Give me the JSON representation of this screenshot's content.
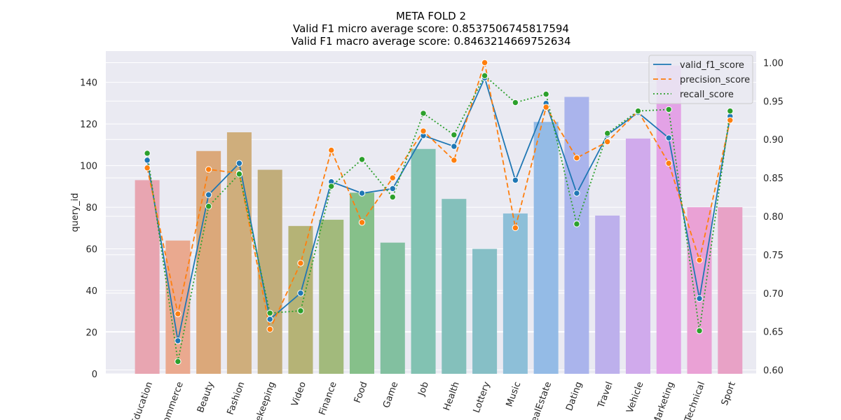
{
  "chart_data": {
    "type": "bar",
    "title_lines": [
      "META FOLD 2",
      "Valid F1 micro average score: 0.8537506745817594",
      "Valid F1 macro average score: 0.8463214669752634"
    ],
    "ylabel": "query_id",
    "ylim": [
      0,
      155
    ],
    "y2lim": [
      0.595,
      1.015
    ],
    "yticks": [
      0,
      20,
      40,
      60,
      80,
      100,
      120,
      140
    ],
    "y2ticks": [
      0.6,
      0.65,
      0.7,
      0.75,
      0.8,
      0.85,
      0.9,
      0.95,
      1.0
    ],
    "grid": true,
    "legend_position": "top-right",
    "categories": [
      "Education",
      "Ecommerce",
      "Beauty",
      "Fashion",
      "Housekeeping",
      "Video",
      "Finance",
      "Food",
      "Game",
      "Job",
      "Health",
      "Lottery",
      "Music",
      "RealEstate",
      "Dating",
      "Travel",
      "Vehicle",
      "Marketing",
      "Technical",
      "Sport"
    ],
    "category_labels": [
      "Education",
      "ommerce",
      "Beauty",
      "Fashion",
      "ekeeping",
      "Video",
      "Finance",
      "Food",
      "Game",
      "Job",
      "Health",
      "Lottery",
      "Music",
      "ealEstate",
      "Dating",
      "Travel",
      "Vehicle",
      "Marketing",
      "Technical",
      "Sport"
    ],
    "bar_values": [
      93,
      64,
      107,
      116,
      98,
      71,
      74,
      87,
      63,
      108,
      84,
      60,
      77,
      121,
      133,
      76,
      113,
      148,
      80,
      80
    ],
    "bar_colors": [
      "#e8a5b1",
      "#eaa98f",
      "#dba87a",
      "#cfae7c",
      "#c1ad7a",
      "#b5b376",
      "#a2ba7c",
      "#86c08a",
      "#82c0a0",
      "#82c2b2",
      "#84c0bb",
      "#86bfc6",
      "#8dbfd8",
      "#94bbe6",
      "#aab4ec",
      "#bdb0ec",
      "#d0aaec",
      "#e3a2e6",
      "#eaa1d5",
      "#e8a2c6"
    ],
    "series": [
      {
        "name": "valid_f1_score",
        "color": "#1f77b4",
        "dash": "solid",
        "values": [
          0.873,
          0.638,
          0.828,
          0.869,
          0.666,
          0.7,
          0.845,
          0.83,
          0.836,
          0.905,
          0.891,
          0.98,
          0.847,
          0.947,
          0.83,
          0.906,
          0.935,
          0.902,
          0.693,
          0.93
        ]
      },
      {
        "name": "precision_score",
        "color": "#ff7f0e",
        "dash": "dashed",
        "values": [
          0.863,
          0.673,
          0.861,
          0.856,
          0.653,
          0.739,
          0.886,
          0.792,
          0.85,
          0.911,
          0.873,
          1.0,
          0.785,
          0.942,
          0.876,
          0.897,
          0.937,
          0.869,
          0.743,
          0.925
        ]
      },
      {
        "name": "recall_score",
        "color": "#2ca02c",
        "dash": "dotted",
        "values": [
          0.882,
          0.611,
          0.813,
          0.855,
          0.674,
          0.677,
          0.839,
          0.874,
          0.825,
          0.934,
          0.906,
          0.983,
          0.948,
          0.959,
          0.79,
          0.908,
          0.937,
          0.939,
          0.651,
          0.937
        ]
      }
    ]
  }
}
